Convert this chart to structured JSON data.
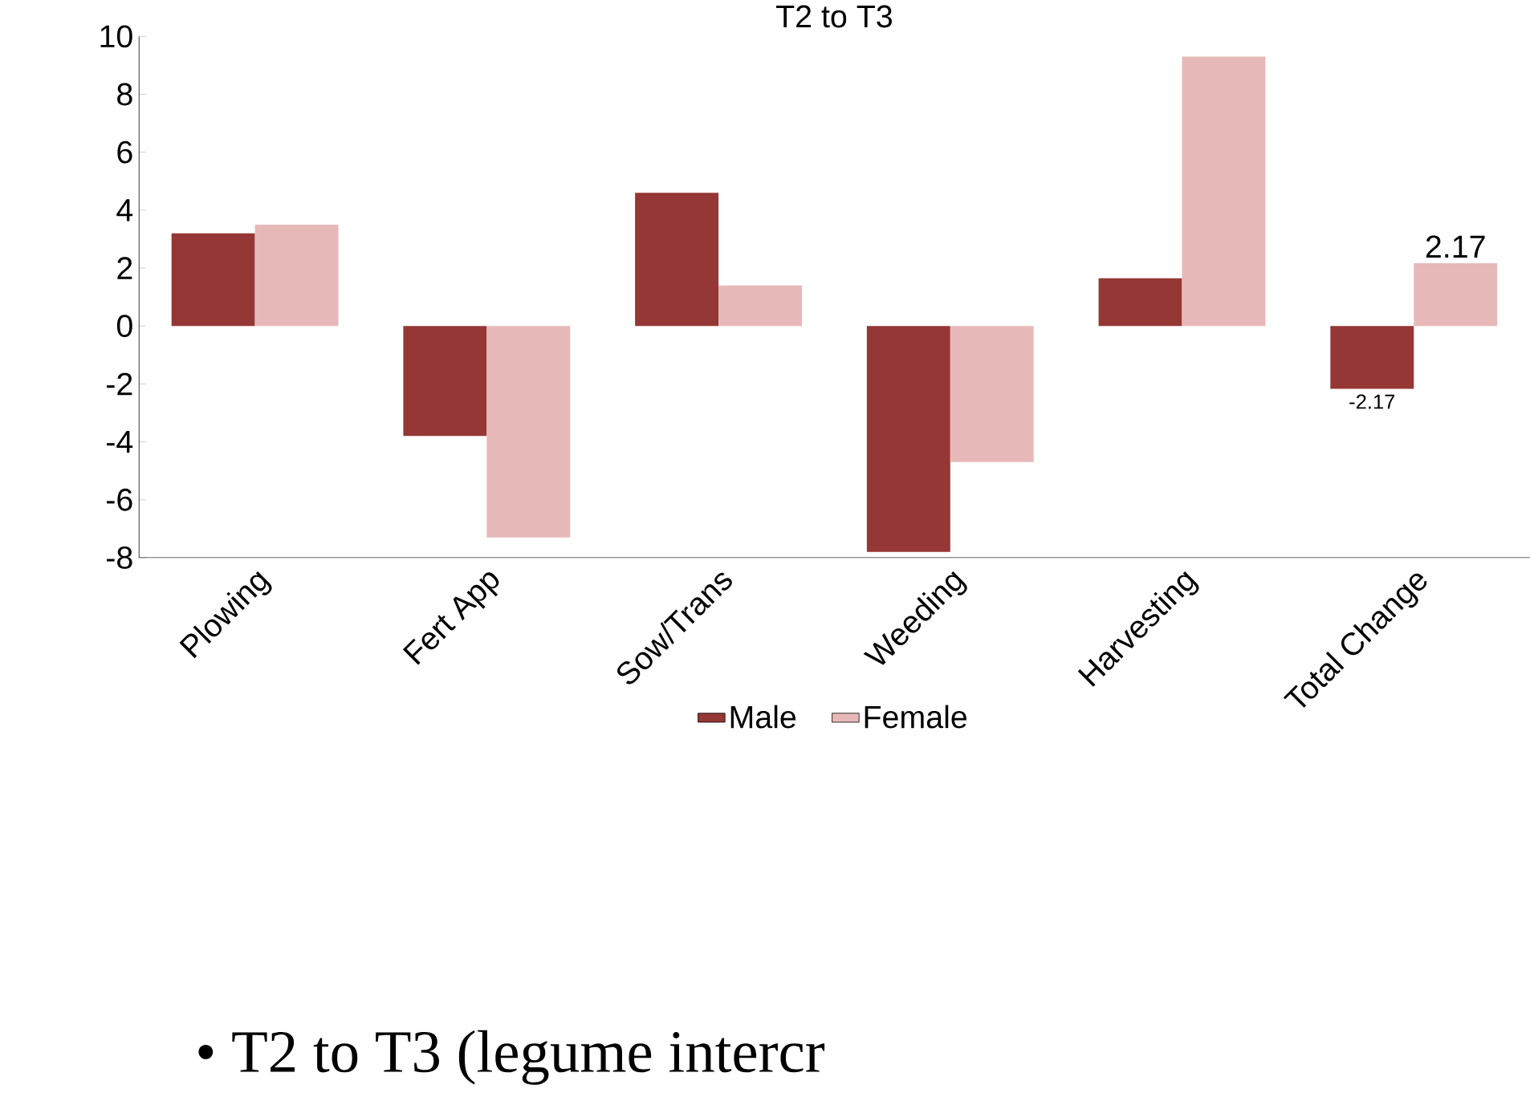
{
  "chart_data": {
    "type": "bar",
    "title": "T2 to T3",
    "categories": [
      "Plowing",
      "Fert App",
      "Sow/Trans",
      "Weeding",
      "Harvesting",
      "Total Change"
    ],
    "series": [
      {
        "name": "Male",
        "color": "#953735",
        "values": [
          3.2,
          -3.8,
          4.6,
          -7.8,
          1.65,
          -2.17
        ],
        "value_labels": [
          null,
          null,
          null,
          null,
          null,
          "-2.17"
        ]
      },
      {
        "name": "Female",
        "color": "#e6b9b8",
        "values": [
          3.5,
          -7.3,
          1.4,
          -4.7,
          9.3,
          2.17
        ],
        "value_labels": [
          null,
          null,
          null,
          null,
          null,
          "2.17"
        ]
      }
    ],
    "ylim": [
      -8,
      10
    ],
    "yticks": [
      -8,
      -6,
      -4,
      -2,
      0,
      2,
      4,
      6,
      8,
      10
    ],
    "grid": false,
    "legend": "bottom",
    "annotations": [
      "•  T2 to T3 (legume intercr"
    ]
  }
}
